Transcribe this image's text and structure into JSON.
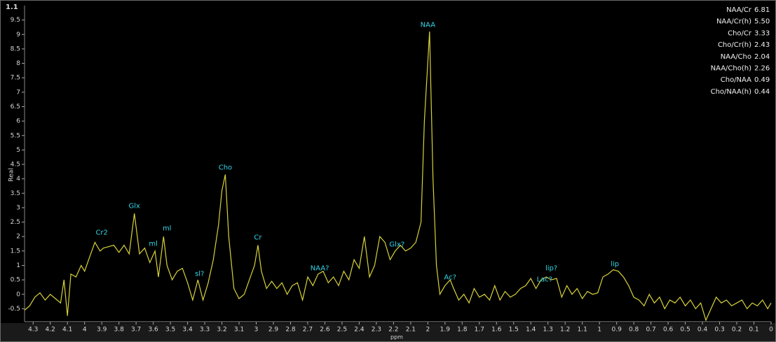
{
  "chart_data": {
    "type": "line",
    "title": "1.1",
    "ylabel": "Real",
    "xlabel": "ppm",
    "x": [
      4.35,
      4.32,
      4.29,
      4.26,
      4.23,
      4.2,
      4.17,
      4.14,
      4.12,
      4.1,
      4.08,
      4.05,
      4.02,
      4.0,
      3.97,
      3.94,
      3.91,
      3.89,
      3.86,
      3.83,
      3.8,
      3.77,
      3.74,
      3.71,
      3.68,
      3.65,
      3.62,
      3.59,
      3.57,
      3.54,
      3.52,
      3.49,
      3.46,
      3.43,
      3.4,
      3.37,
      3.34,
      3.31,
      3.28,
      3.25,
      3.22,
      3.2,
      3.18,
      3.16,
      3.13,
      3.1,
      3.07,
      3.04,
      3.01,
      2.99,
      2.97,
      2.94,
      2.91,
      2.88,
      2.85,
      2.82,
      2.79,
      2.76,
      2.73,
      2.7,
      2.67,
      2.64,
      2.61,
      2.58,
      2.55,
      2.52,
      2.49,
      2.46,
      2.43,
      2.4,
      2.37,
      2.34,
      2.31,
      2.28,
      2.25,
      2.22,
      2.19,
      2.16,
      2.13,
      2.1,
      2.07,
      2.04,
      2.02,
      1.99,
      1.97,
      1.95,
      1.93,
      1.9,
      1.87,
      1.85,
      1.82,
      1.79,
      1.76,
      1.73,
      1.7,
      1.67,
      1.64,
      1.61,
      1.58,
      1.55,
      1.52,
      1.49,
      1.46,
      1.43,
      1.4,
      1.37,
      1.34,
      1.31,
      1.28,
      1.25,
      1.22,
      1.19,
      1.16,
      1.13,
      1.1,
      1.07,
      1.04,
      1.01,
      0.98,
      0.95,
      0.92,
      0.89,
      0.86,
      0.83,
      0.8,
      0.77,
      0.74,
      0.71,
      0.68,
      0.65,
      0.62,
      0.59,
      0.56,
      0.53,
      0.5,
      0.47,
      0.44,
      0.41,
      0.38,
      0.35,
      0.32,
      0.29,
      0.26,
      0.23,
      0.2,
      0.17,
      0.14,
      0.11,
      0.08,
      0.05,
      0.02,
      0.0
    ],
    "series": [
      {
        "color": "#d8d23a",
        "values": [
          -0.55,
          -0.4,
          -0.1,
          0.05,
          -0.2,
          0.0,
          -0.15,
          -0.3,
          0.5,
          -0.75,
          0.7,
          0.6,
          1.0,
          0.8,
          1.3,
          1.8,
          1.5,
          1.6,
          1.65,
          1.7,
          1.45,
          1.7,
          1.4,
          2.8,
          1.4,
          1.6,
          1.1,
          1.5,
          0.6,
          2.0,
          1.0,
          0.5,
          0.8,
          0.9,
          0.4,
          -0.2,
          0.5,
          -0.2,
          0.4,
          1.2,
          2.4,
          3.6,
          4.15,
          2.0,
          0.2,
          -0.15,
          0.0,
          0.5,
          1.0,
          1.7,
          0.8,
          0.2,
          0.45,
          0.2,
          0.4,
          0.0,
          0.3,
          0.4,
          -0.2,
          0.6,
          0.3,
          0.7,
          0.8,
          0.4,
          0.6,
          0.3,
          0.8,
          0.5,
          1.2,
          0.9,
          2.0,
          0.6,
          1.0,
          2.0,
          1.8,
          1.2,
          1.5,
          1.7,
          1.5,
          1.6,
          1.8,
          2.5,
          6.0,
          9.1,
          4.0,
          1.0,
          0.0,
          0.3,
          0.5,
          0.2,
          -0.2,
          0.0,
          -0.3,
          0.2,
          -0.1,
          0.0,
          -0.2,
          0.3,
          -0.2,
          0.1,
          -0.1,
          0.0,
          0.2,
          0.3,
          0.55,
          0.2,
          0.5,
          0.6,
          0.5,
          0.55,
          -0.1,
          0.3,
          0.0,
          0.2,
          -0.15,
          0.1,
          0.0,
          0.05,
          0.6,
          0.7,
          0.85,
          0.8,
          0.6,
          0.3,
          -0.1,
          -0.2,
          -0.4,
          0.0,
          -0.3,
          -0.1,
          -0.5,
          -0.2,
          -0.3,
          -0.1,
          -0.4,
          -0.2,
          -0.5,
          -0.3,
          -0.9,
          -0.5,
          -0.1,
          -0.3,
          -0.2,
          -0.4,
          -0.3,
          -0.2,
          -0.5,
          -0.3,
          -0.4,
          -0.2,
          -0.5,
          -0.3
        ]
      }
    ],
    "xlim": [
      4.35,
      0
    ],
    "xticks": [
      4.3,
      4.2,
      4.1,
      4,
      3.9,
      3.8,
      3.7,
      3.6,
      3.5,
      3.4,
      3.3,
      3.2,
      3.1,
      3,
      2.9,
      2.8,
      2.7,
      2.6,
      2.5,
      2.4,
      2.3,
      2.2,
      2.1,
      2,
      1.9,
      1.8,
      1.7,
      1.6,
      1.5,
      1.4,
      1.3,
      1.2,
      1.1,
      1,
      0.9,
      0.8,
      0.7,
      0.6,
      0.5,
      0.4,
      0.3,
      0.2,
      0.1,
      0
    ],
    "ylim": [
      -0.95,
      10
    ],
    "yticks": [
      -0.5,
      0,
      0.5,
      1,
      1.5,
      2,
      2.5,
      3,
      3.5,
      4,
      4.5,
      5,
      5.5,
      6,
      6.5,
      7,
      7.5,
      8,
      8.5,
      9,
      9.5
    ],
    "annotations": [
      {
        "text": "Cr2",
        "x": 3.9,
        "y": 2.14
      },
      {
        "text": "Glx",
        "x": 3.71,
        "y": 3.06
      },
      {
        "text": "ml",
        "x": 3.6,
        "y": 1.75
      },
      {
        "text": "ml",
        "x": 3.52,
        "y": 2.28
      },
      {
        "text": "sl?",
        "x": 3.33,
        "y": 0.71
      },
      {
        "text": "Cho",
        "x": 3.18,
        "y": 4.39
      },
      {
        "text": "Cr",
        "x": 2.99,
        "y": 1.97
      },
      {
        "text": "NAA?",
        "x": 2.63,
        "y": 0.9
      },
      {
        "text": "Glx?",
        "x": 2.18,
        "y": 1.73
      },
      {
        "text": "NAA",
        "x": 2.0,
        "y": 9.33
      },
      {
        "text": "Ac?",
        "x": 1.87,
        "y": 0.59
      },
      {
        "text": "Lac?",
        "x": 1.32,
        "y": 0.52
      },
      {
        "text": "lip?",
        "x": 1.28,
        "y": 0.9
      },
      {
        "text": "lip",
        "x": 0.91,
        "y": 1.05
      }
    ],
    "ratios": [
      {
        "label": "NAA/Cr",
        "value": "6.81"
      },
      {
        "label": "NAA/Cr(h)",
        "value": "5.50"
      },
      {
        "label": "Cho/Cr",
        "value": "3.33"
      },
      {
        "label": "Cho/Cr(h)",
        "value": "2.43"
      },
      {
        "label": "NAA/Cho",
        "value": "2.04"
      },
      {
        "label": "NAA/Cho(h)",
        "value": "2.26"
      },
      {
        "label": "Cho/NAA",
        "value": "0.49"
      },
      {
        "label": "Cho/NAA(h)",
        "value": "0.44"
      }
    ]
  }
}
